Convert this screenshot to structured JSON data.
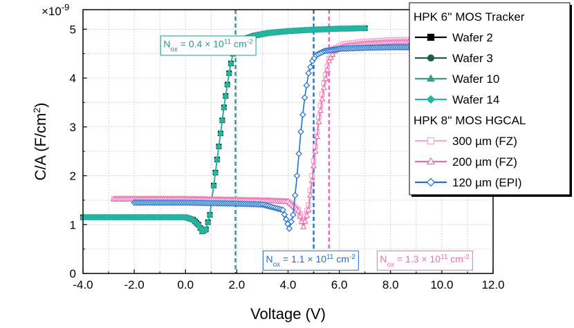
{
  "chart_data": {
    "type": "scatter",
    "xlabel": "Voltage (V)",
    "ylabel_main": "C/A (F/cm",
    "ylabel_sup": "2",
    "ylabel_close": ")",
    "y_multiplier_base": "×10",
    "y_multiplier_exp": "-9",
    "xlim": [
      -4,
      12
    ],
    "ylim": [
      0,
      5.4
    ],
    "x_ticks": [
      -4,
      -2,
      0,
      2,
      4,
      6,
      8,
      10,
      12
    ],
    "x_tick_labels": [
      "-4.0",
      "-2.0",
      "0.0",
      "2.0",
      "4.0",
      "6.0",
      "8.0",
      "10.0",
      "12.0"
    ],
    "y_ticks": [
      0,
      1,
      2,
      3,
      4,
      5
    ],
    "y_tick_labels": [
      "0",
      "1",
      "2",
      "3",
      "4",
      "5"
    ],
    "grid": true,
    "legend": {
      "position": "top-right",
      "groups": [
        {
          "title": "HPK 6'' MOS Tracker",
          "entries": [
            {
              "name": "Wafer 2",
              "color": "#000000",
              "marker": "square"
            },
            {
              "name": "Wafer 3",
              "color": "#1f5b4e",
              "marker": "circle"
            },
            {
              "name": "Wafer 10",
              "color": "#2e9e8a",
              "marker": "triangle"
            },
            {
              "name": "Wafer 14",
              "color": "#22b5a2",
              "marker": "diamond"
            }
          ]
        },
        {
          "title": "HPK 8'' MOS HGCAL",
          "entries": [
            {
              "name": "300 µm (FZ)",
              "color": "#f2a7cc",
              "marker": "square-open"
            },
            {
              "name": "200 µm (FZ)",
              "color": "#f06aae",
              "marker": "triangle-open"
            },
            {
              "name": "120 µm (EPI)",
              "color": "#1f6fcc",
              "marker": "diamond-open"
            }
          ]
        }
      ]
    },
    "series": [
      {
        "name": "Wafer 2",
        "color": "#000000",
        "x": [
          -4,
          -3,
          -2,
          -1,
          0,
          0.3,
          0.5,
          0.65,
          0.8,
          0.95,
          1.1,
          1.3,
          1.5,
          1.7,
          1.85,
          2,
          2.3,
          2.7,
          3.2,
          4,
          5,
          6,
          7
        ],
        "y": [
          1.15,
          1.15,
          1.15,
          1.15,
          1.15,
          1.1,
          1.0,
          0.86,
          0.9,
          1.2,
          1.8,
          2.6,
          3.4,
          4.1,
          4.5,
          4.68,
          4.8,
          4.87,
          4.92,
          4.96,
          4.99,
          5.01,
          5.02
        ]
      },
      {
        "name": "Wafer 3",
        "color": "#1f5b4e",
        "x": [
          -4,
          -3,
          -2,
          -1,
          0,
          0.3,
          0.5,
          0.65,
          0.8,
          0.95,
          1.1,
          1.3,
          1.5,
          1.7,
          1.85,
          2,
          2.3,
          2.7,
          3.2,
          4,
          5,
          6,
          7
        ],
        "y": [
          1.15,
          1.15,
          1.15,
          1.15,
          1.15,
          1.1,
          1.0,
          0.86,
          0.9,
          1.2,
          1.8,
          2.6,
          3.4,
          4.1,
          4.5,
          4.68,
          4.8,
          4.87,
          4.92,
          4.96,
          4.99,
          5.01,
          5.02
        ]
      },
      {
        "name": "Wafer 10",
        "color": "#2e9e8a",
        "x": [
          -4,
          -3,
          -2,
          -1,
          0,
          0.3,
          0.5,
          0.65,
          0.8,
          0.95,
          1.1,
          1.3,
          1.5,
          1.7,
          1.85,
          2,
          2.3,
          2.7,
          3.2,
          4,
          5,
          6,
          7
        ],
        "y": [
          1.15,
          1.15,
          1.15,
          1.15,
          1.15,
          1.1,
          1.0,
          0.86,
          0.9,
          1.2,
          1.8,
          2.6,
          3.4,
          4.1,
          4.5,
          4.68,
          4.8,
          4.87,
          4.92,
          4.96,
          4.99,
          5.01,
          5.02
        ]
      },
      {
        "name": "Wafer 14",
        "color": "#22b5a2",
        "x": [
          -4,
          -3,
          -2,
          -1,
          0,
          0.3,
          0.5,
          0.65,
          0.8,
          0.95,
          1.1,
          1.3,
          1.5,
          1.7,
          1.85,
          2,
          2.3,
          2.7,
          3.2,
          4,
          5,
          6,
          7
        ],
        "y": [
          1.15,
          1.15,
          1.15,
          1.15,
          1.15,
          1.1,
          1.0,
          0.86,
          0.9,
          1.2,
          1.8,
          2.6,
          3.4,
          4.1,
          4.5,
          4.68,
          4.8,
          4.87,
          4.92,
          4.96,
          4.99,
          5.01,
          5.02
        ]
      },
      {
        "name": "300 µm (FZ)",
        "color": "#f2a7cc",
        "x": [
          -2.8,
          -1,
          0,
          1,
          2,
          3,
          4,
          4.4,
          4.6,
          4.8,
          5,
          5.2,
          5.4,
          5.6,
          5.8,
          6.2,
          7,
          8,
          9,
          10
        ],
        "y": [
          1.53,
          1.53,
          1.53,
          1.52,
          1.51,
          1.5,
          1.48,
          1.3,
          1.05,
          1.4,
          2.3,
          3.2,
          3.9,
          4.4,
          4.6,
          4.7,
          4.75,
          4.78,
          4.79,
          4.8
        ]
      },
      {
        "name": "200 µm (FZ)",
        "color": "#f06aae",
        "x": [
          -2.8,
          -1,
          0,
          1,
          2,
          3,
          4,
          4.4,
          4.6,
          4.8,
          5,
          5.2,
          5.4,
          5.6,
          5.8,
          6.2,
          7,
          8,
          9,
          10
        ],
        "y": [
          1.52,
          1.52,
          1.52,
          1.51,
          1.5,
          1.49,
          1.47,
          1.28,
          0.95,
          1.3,
          2.2,
          3.1,
          3.8,
          4.35,
          4.55,
          4.65,
          4.7,
          4.73,
          4.74,
          4.75
        ]
      },
      {
        "name": "120 µm (EPI)",
        "color": "#1f6fcc",
        "x": [
          -2,
          -1,
          0,
          1,
          2,
          3,
          3.8,
          4.05,
          4.2,
          4.35,
          4.5,
          4.65,
          4.8,
          4.95,
          5.1,
          5.4,
          6,
          7,
          8,
          9,
          10
        ],
        "y": [
          1.45,
          1.45,
          1.45,
          1.44,
          1.43,
          1.41,
          1.3,
          0.92,
          1.2,
          2.0,
          2.9,
          3.6,
          4.1,
          4.35,
          4.47,
          4.55,
          4.6,
          4.62,
          4.63,
          4.63,
          4.63
        ]
      }
    ],
    "reference_lines": [
      {
        "x": 1.95,
        "color": "#1e9c8c",
        "style": "dashed"
      },
      {
        "x": 5.0,
        "color": "#1f6fcc",
        "style": "dashed"
      },
      {
        "x": 5.6,
        "color": "#f06aae",
        "style": "dashed"
      }
    ],
    "annotations": [
      {
        "name": "nox-6in",
        "color": "#1e9c8c",
        "x_anchor": -1.0,
        "y_anchor": 4.7,
        "prefix": "N",
        "sub": "ox",
        "mid": " = 0.4 × 10",
        "sup": "11",
        "unit": " cm",
        "unit_sup": "-2"
      },
      {
        "name": "nox-120",
        "color": "#1f6fcc",
        "x_anchor": 3.0,
        "y_anchor": 0.3,
        "prefix": "N",
        "sub": "ox",
        "mid": " = 1.1 × 10",
        "sup": "11",
        "unit": " cm",
        "unit_sup": "-2"
      },
      {
        "name": "nox-200",
        "color": "#f06aae",
        "x_anchor": 7.45,
        "y_anchor": 0.3,
        "prefix": "N",
        "sub": "ox",
        "mid": " = 1.3 × 10",
        "sup": "11",
        "unit": " cm",
        "unit_sup": "-2"
      }
    ]
  }
}
